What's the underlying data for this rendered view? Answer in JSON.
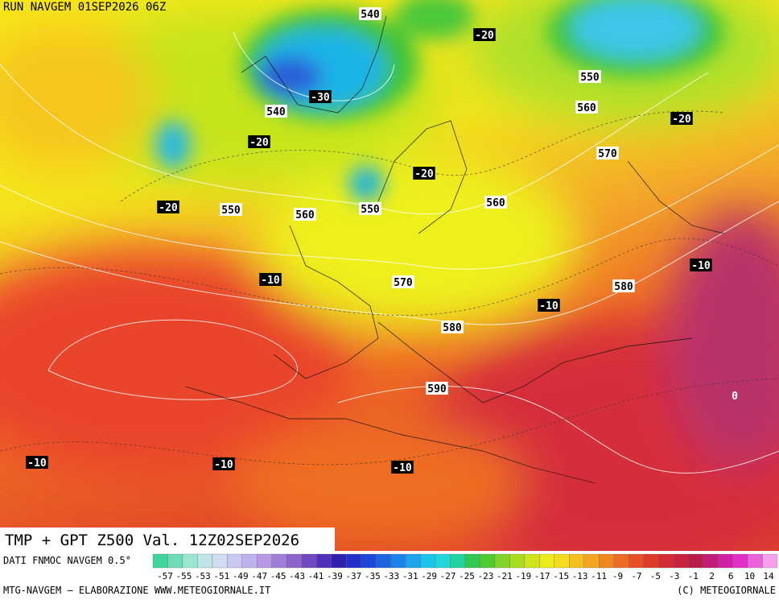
{
  "header": {
    "run": "RUN NAVGEM 01SEP2026 06Z",
    "title": "TMP + GPT Z500 Val. 12Z02SEP2026"
  },
  "map": {
    "labels": [
      {
        "kind": "gpt",
        "value": 540
      },
      {
        "kind": "tmp",
        "value": -20
      },
      {
        "kind": "gpt",
        "value": 550
      },
      {
        "kind": "gpt",
        "value": 540
      },
      {
        "kind": "tmp",
        "value": -30
      },
      {
        "kind": "gpt",
        "value": 560
      },
      {
        "kind": "tmp",
        "value": -20
      },
      {
        "kind": "tmp",
        "value": -20
      },
      {
        "kind": "gpt",
        "value": 570
      },
      {
        "kind": "tmp",
        "value": -20
      },
      {
        "kind": "tmp",
        "value": -20
      },
      {
        "kind": "gpt",
        "value": 550
      },
      {
        "kind": "gpt",
        "value": 560
      },
      {
        "kind": "gpt",
        "value": 550
      },
      {
        "kind": "gpt",
        "value": 560
      },
      {
        "kind": "tmp",
        "value": -10
      },
      {
        "kind": "tmp",
        "value": -10
      },
      {
        "kind": "gpt",
        "value": 570
      },
      {
        "kind": "gpt",
        "value": 580
      },
      {
        "kind": "tmp",
        "value": -10
      },
      {
        "kind": "gpt",
        "value": 580
      },
      {
        "kind": "gpt",
        "value": 590
      },
      {
        "kind": "tmp",
        "value": 0
      },
      {
        "kind": "tmp",
        "value": -10
      },
      {
        "kind": "tmp",
        "value": -10
      },
      {
        "kind": "tmp",
        "value": -10
      }
    ]
  },
  "legend": {
    "source": "DATI FNMOC NAVGEM 0.5°",
    "ticks": [
      -57,
      -55,
      -53,
      -51,
      -49,
      -47,
      -45,
      -43,
      -41,
      -39,
      -37,
      -35,
      -33,
      -31,
      -29,
      -27,
      -25,
      -23,
      -21,
      -19,
      -17,
      -15,
      -13,
      -11,
      -9,
      -7,
      -5,
      -3,
      -1,
      2,
      6,
      10,
      14
    ]
  },
  "footer": {
    "left": "MTG-NAVGEM — ELABORAZIONE WWW.METEOGIORNALE.IT",
    "right": "(C) METEOGIORNALE"
  }
}
